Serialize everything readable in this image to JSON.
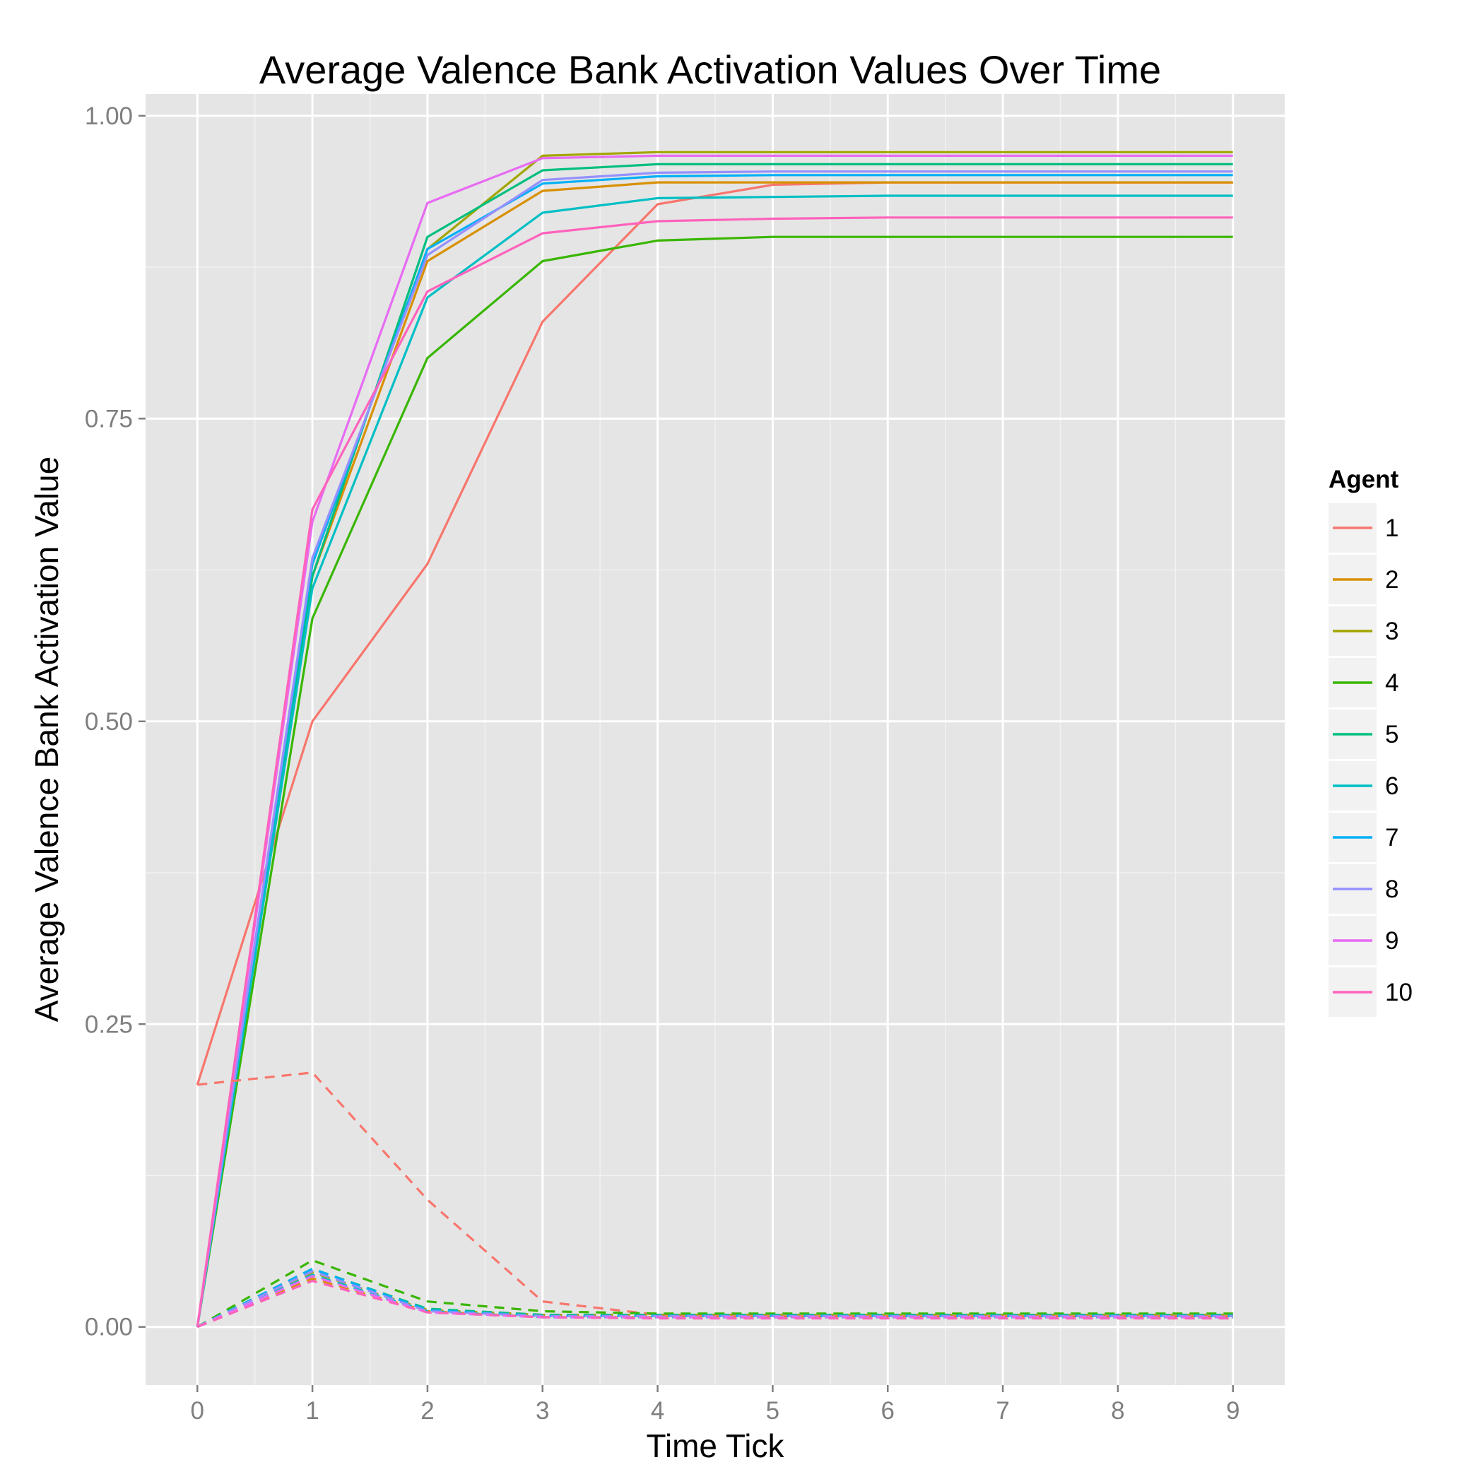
{
  "chart_data": {
    "type": "line",
    "title": "Average Valence Bank Activation Values Over Time",
    "xlabel": "Time Tick",
    "ylabel": "Average Valence Bank Activation Value",
    "x": [
      0,
      1,
      2,
      3,
      4,
      5,
      6,
      7,
      8,
      9
    ],
    "x_ticks": [
      "0",
      "1",
      "2",
      "3",
      "4",
      "5",
      "6",
      "7",
      "8",
      "9"
    ],
    "y_ticks": [
      "0.00",
      "0.25",
      "0.50",
      "0.75",
      "1.00"
    ],
    "xlim": [
      -0.45,
      9.45
    ],
    "ylim": [
      -0.048,
      1.018
    ],
    "grid": true,
    "legend": {
      "title": "Agent",
      "position": "right"
    },
    "series": [
      {
        "name": "1",
        "color": "#F8766D",
        "solid": [
          0.2,
          0.5,
          0.63,
          0.83,
          0.927,
          0.943,
          0.945,
          0.945,
          0.945,
          0.945
        ],
        "dashed": [
          0.2,
          0.21,
          0.105,
          0.021,
          0.01,
          0.009,
          0.009,
          0.009,
          0.009,
          0.009
        ]
      },
      {
        "name": "2",
        "color": "#D89000",
        "solid": [
          0.0,
          0.62,
          0.88,
          0.938,
          0.945,
          0.945,
          0.945,
          0.945,
          0.945,
          0.945
        ],
        "dashed": [
          0.0,
          0.04,
          0.013,
          0.008,
          0.008,
          0.008,
          0.008,
          0.008,
          0.008,
          0.008
        ]
      },
      {
        "name": "3",
        "color": "#A3A500",
        "solid": [
          0.0,
          0.63,
          0.89,
          0.967,
          0.97,
          0.97,
          0.97,
          0.97,
          0.97,
          0.97
        ],
        "dashed": [
          0.0,
          0.045,
          0.014,
          0.01,
          0.01,
          0.01,
          0.01,
          0.01,
          0.01,
          0.01
        ]
      },
      {
        "name": "4",
        "color": "#39B600",
        "solid": [
          0.0,
          0.585,
          0.8,
          0.88,
          0.897,
          0.9,
          0.9,
          0.9,
          0.9,
          0.9
        ],
        "dashed": [
          0.0,
          0.055,
          0.021,
          0.013,
          0.011,
          0.011,
          0.011,
          0.011,
          0.011,
          0.011
        ]
      },
      {
        "name": "5",
        "color": "#00BF7D",
        "solid": [
          0.0,
          0.62,
          0.9,
          0.955,
          0.96,
          0.96,
          0.96,
          0.96,
          0.96,
          0.96
        ],
        "dashed": [
          0.0,
          0.048,
          0.015,
          0.01,
          0.01,
          0.01,
          0.01,
          0.01,
          0.01,
          0.01
        ]
      },
      {
        "name": "6",
        "color": "#00BFC4",
        "solid": [
          0.0,
          0.61,
          0.85,
          0.92,
          0.932,
          0.933,
          0.934,
          0.934,
          0.934,
          0.934
        ],
        "dashed": [
          0.0,
          0.043,
          0.013,
          0.008,
          0.008,
          0.008,
          0.008,
          0.008,
          0.008,
          0.008
        ]
      },
      {
        "name": "7",
        "color": "#00B0F6",
        "solid": [
          0.0,
          0.63,
          0.89,
          0.944,
          0.95,
          0.951,
          0.951,
          0.951,
          0.951,
          0.951
        ],
        "dashed": [
          0.0,
          0.048,
          0.014,
          0.009,
          0.009,
          0.009,
          0.009,
          0.009,
          0.009,
          0.009
        ]
      },
      {
        "name": "8",
        "color": "#9590FF",
        "solid": [
          0.0,
          0.635,
          0.885,
          0.947,
          0.953,
          0.954,
          0.954,
          0.954,
          0.954,
          0.954
        ],
        "dashed": [
          0.0,
          0.046,
          0.013,
          0.009,
          0.009,
          0.009,
          0.009,
          0.009,
          0.009,
          0.009
        ]
      },
      {
        "name": "9",
        "color": "#E76BF3",
        "solid": [
          0.0,
          0.665,
          0.928,
          0.965,
          0.967,
          0.967,
          0.967,
          0.967,
          0.967,
          0.967
        ],
        "dashed": [
          0.0,
          0.042,
          0.012,
          0.008,
          0.008,
          0.008,
          0.008,
          0.008,
          0.008,
          0.008
        ]
      },
      {
        "name": "10",
        "color": "#FF62BC",
        "solid": [
          0.0,
          0.675,
          0.855,
          0.903,
          0.913,
          0.915,
          0.916,
          0.916,
          0.916,
          0.916
        ],
        "dashed": [
          0.0,
          0.038,
          0.012,
          0.008,
          0.007,
          0.007,
          0.007,
          0.007,
          0.007,
          0.007
        ]
      }
    ]
  }
}
